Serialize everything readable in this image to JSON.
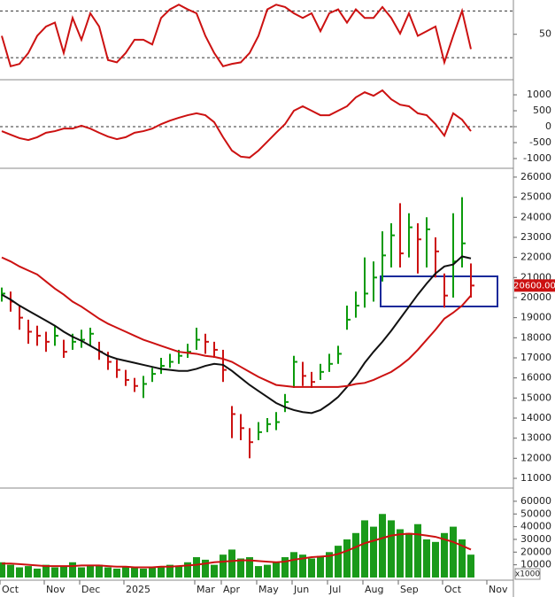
{
  "chart_data": [
    {
      "type": "line",
      "color": "#cc1111",
      "ylim": [
        -6,
        94
      ],
      "yticks": [
        50
      ],
      "levels": [
        20,
        80
      ],
      "values": [
        48,
        9,
        12,
        26,
        48,
        60,
        65,
        26,
        71,
        43,
        77,
        60,
        17,
        14,
        26,
        43,
        43,
        37,
        71,
        82,
        88,
        82,
        77,
        48,
        26,
        9,
        12,
        14,
        26,
        48,
        82,
        88,
        85,
        77,
        71,
        77,
        54,
        77,
        82,
        65,
        82,
        71,
        71,
        85,
        71,
        51,
        77,
        48,
        54,
        60,
        14,
        48,
        80,
        31,
        null,
        null
      ]
    },
    {
      "type": "line",
      "color": "#cc1111",
      "ylim": [
        -1250,
        1390
      ],
      "yticks": [
        -1000,
        -500,
        0,
        500,
        1000
      ],
      "levels": [
        0
      ],
      "values": [
        -140,
        -250,
        -360,
        -420,
        -330,
        -190,
        -140,
        -60,
        -60,
        30,
        -60,
        -190,
        -310,
        -390,
        -330,
        -190,
        -140,
        -60,
        80,
        190,
        280,
        360,
        420,
        360,
        140,
        -330,
        -750,
        -940,
        -970,
        -750,
        -470,
        -190,
        80,
        500,
        640,
        500,
        360,
        360,
        500,
        640,
        920,
        1080,
        970,
        1140,
        860,
        690,
        640,
        420,
        360,
        80,
        -280,
        420,
        220,
        -140,
        null,
        null
      ]
    },
    {
      "type": "ohlc",
      "up_color": "#0a9a0a",
      "down_color": "#cc1111",
      "ylim": [
        10560,
        26350
      ],
      "yticks": [
        11000,
        12000,
        13000,
        14000,
        15000,
        16000,
        17000,
        18000,
        19000,
        20000,
        21000,
        22000,
        23000,
        24000,
        25000,
        26000
      ],
      "last_value_label": "20600.00",
      "close": [
        20200,
        19800,
        19000,
        18300,
        18100,
        17800,
        18100,
        17300,
        17800,
        17900,
        18200,
        17300,
        16800,
        16400,
        15900,
        15600,
        15700,
        16200,
        16600,
        16800,
        17100,
        17300,
        17900,
        17800,
        17400,
        16400,
        14200,
        13500,
        12800,
        13300,
        13700,
        13800,
        14800,
        16800,
        16100,
        15800,
        16300,
        16700,
        17200,
        18900,
        19600,
        20200,
        21000,
        22100,
        23100,
        22200,
        23500,
        22900,
        23400,
        22300,
        20100,
        21800,
        22700,
        20600,
        null,
        null
      ],
      "high": [
        20500,
        20300,
        19600,
        18900,
        18600,
        18300,
        18600,
        17900,
        18200,
        18400,
        18500,
        17800,
        17300,
        16900,
        16400,
        16000,
        16100,
        16500,
        17000,
        17200,
        17400,
        17700,
        18500,
        18200,
        17800,
        17400,
        14600,
        14200,
        13500,
        13800,
        14000,
        14300,
        15200,
        17100,
        16800,
        16300,
        16700,
        17200,
        17600,
        19600,
        20300,
        22000,
        21800,
        23300,
        23700,
        24700,
        24200,
        23700,
        24000,
        23000,
        21200,
        24200,
        25000,
        21700,
        null,
        null
      ],
      "low": [
        19800,
        19300,
        18400,
        17700,
        17600,
        17300,
        17600,
        17000,
        17400,
        17500,
        17600,
        16900,
        16400,
        16000,
        15600,
        15300,
        15000,
        15800,
        16200,
        16500,
        16700,
        17000,
        17400,
        17200,
        17000,
        15800,
        13000,
        12900,
        12000,
        12900,
        13300,
        13400,
        14300,
        15500,
        15600,
        15500,
        15900,
        16300,
        16700,
        18400,
        19000,
        19500,
        19800,
        20800,
        21500,
        21500,
        22000,
        21200,
        21500,
        21000,
        19500,
        20000,
        21500,
        20000,
        null,
        null
      ],
      "lines": [
        {
          "color": "#111111",
          "values": [
            20150,
            19900,
            19600,
            19350,
            19100,
            18850,
            18600,
            18300,
            18050,
            17850,
            17600,
            17350,
            17100,
            16950,
            16850,
            16750,
            16650,
            16550,
            16450,
            16400,
            16350,
            16350,
            16450,
            16600,
            16700,
            16650,
            16350,
            16000,
            15650,
            15350,
            15050,
            14750,
            14550,
            14400,
            14300,
            14250,
            14400,
            14700,
            15050,
            15550,
            16100,
            16750,
            17300,
            17800,
            18350,
            18950,
            19550,
            20150,
            20700,
            21200,
            21550,
            21650,
            22050,
            21950,
            null,
            null
          ]
        },
        {
          "color": "#cc1111",
          "values": [
            22000,
            21800,
            21550,
            21350,
            21150,
            20800,
            20450,
            20150,
            19800,
            19550,
            19250,
            18950,
            18700,
            18500,
            18300,
            18100,
            17900,
            17750,
            17600,
            17450,
            17300,
            17250,
            17200,
            17100,
            17050,
            16950,
            16800,
            16550,
            16300,
            16050,
            15850,
            15650,
            15600,
            15550,
            15550,
            15550,
            15550,
            15550,
            15550,
            15600,
            15700,
            15750,
            15900,
            16100,
            16300,
            16600,
            16950,
            17400,
            17900,
            18400,
            18950,
            19250,
            19600,
            20100,
            null,
            null
          ]
        }
      ]
    },
    {
      "type": "bar",
      "color": "#1a9a1a",
      "ylim": [
        0,
        69000
      ],
      "yticks": [
        10000,
        20000,
        30000,
        40000,
        50000,
        60000
      ],
      "unit_label": "x1000",
      "categories": [
        "Oct",
        null,
        null,
        null,
        null,
        "Nov",
        null,
        null,
        null,
        "Dec",
        null,
        null,
        null,
        null,
        "2025",
        null,
        null,
        null,
        null,
        null,
        null,
        null,
        "Mar",
        null,
        null,
        "Apr",
        null,
        null,
        null,
        "May",
        null,
        null,
        null,
        "Jun",
        null,
        null,
        null,
        "Jul",
        null,
        null,
        null,
        "Aug",
        null,
        null,
        null,
        "Sep",
        null,
        null,
        null,
        null,
        "Oct",
        null,
        null,
        null,
        null,
        "Nov"
      ],
      "values": [
        12000,
        10000,
        8000,
        9000,
        7000,
        10000,
        8000,
        9000,
        12000,
        8000,
        9000,
        10000,
        8000,
        7000,
        9000,
        8000,
        7000,
        8000,
        9000,
        10000,
        9000,
        12000,
        16000,
        14000,
        10000,
        18000,
        22000,
        15000,
        16000,
        9000,
        10000,
        12000,
        16000,
        20000,
        18000,
        15000,
        17000,
        20000,
        25000,
        30000,
        35000,
        45000,
        40000,
        50000,
        45000,
        38000,
        35000,
        42000,
        30000,
        28000,
        35000,
        40000,
        30000,
        18000,
        null,
        null
      ],
      "lines": [
        {
          "color": "#cc1111",
          "values": [
            11000,
            11000,
            10500,
            10000,
            9500,
            9000,
            9000,
            9000,
            9000,
            9500,
            9500,
            9500,
            9000,
            8500,
            8500,
            8000,
            8000,
            8000,
            8500,
            8500,
            9000,
            9500,
            10000,
            11000,
            12000,
            12500,
            13000,
            13500,
            13500,
            13000,
            12500,
            12000,
            12500,
            14000,
            15000,
            16000,
            16500,
            17000,
            18500,
            21000,
            24000,
            27000,
            29000,
            31000,
            33000,
            34000,
            34500,
            34000,
            33000,
            32000,
            30000,
            28000,
            25000,
            22000,
            null,
            null
          ]
        }
      ]
    }
  ]
}
